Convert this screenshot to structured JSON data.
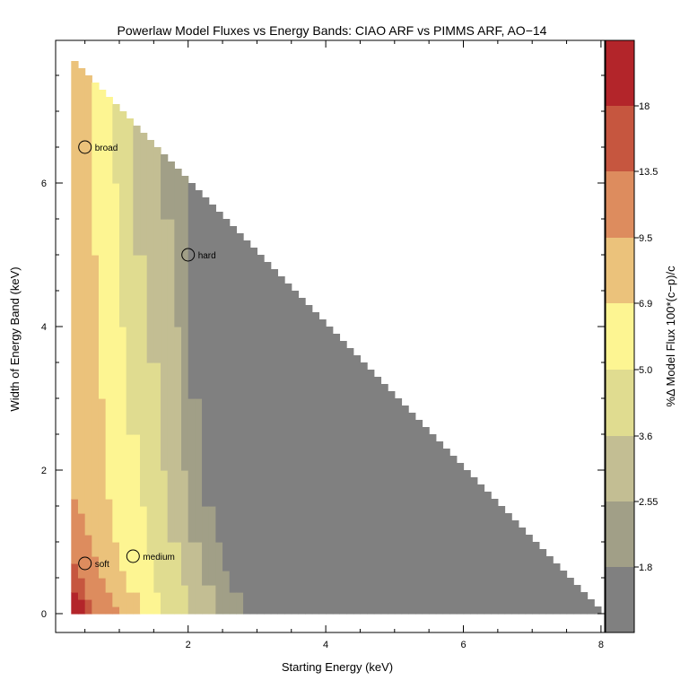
{
  "chart_data": {
    "type": "heatmap",
    "title": "Powerlaw Model Fluxes vs Energy Bands: CIAO ARF vs PIMMS ARF, AO−14",
    "xlabel": "Starting Energy (keV)",
    "ylabel": "Width of Energy Band (keV)",
    "colorbar_label": "%Δ Model Flux 100*(c−p)/c",
    "xlim": [
      -0.3,
      8.1
    ],
    "ylim": [
      -0.3,
      8.0
    ],
    "x_ticks": [
      2,
      4,
      6,
      8
    ],
    "y_ticks": [
      0,
      2,
      4,
      6
    ],
    "grid": false,
    "colorbar": {
      "tick_labels": [
        "1.8",
        "2.55",
        "3.6",
        "5.0",
        "6.9",
        "9.5",
        "13.5",
        "18"
      ],
      "colors": [
        "#808080",
        "#a19f87",
        "#c3be93",
        "#e0dc90",
        "#fdf592",
        "#ebc27b",
        "#dd8c5e",
        "#c6563f",
        "#b3252a"
      ]
    },
    "region": {
      "description": "Triangular domain: start energy 0.3-8.0 keV, band width 0.1 to (8 - start) keV",
      "x_min": 0.3,
      "x_max": 8.0,
      "y_min": 0.1
    },
    "contour_boundaries_y_by_x": {
      "x": [
        0.3,
        0.4,
        0.5,
        0.6,
        0.7,
        0.8,
        0.9,
        1.0,
        1.2,
        1.4,
        1.6,
        1.8,
        2.0,
        2.3,
        2.6,
        3.0
      ],
      "note": "color band index at each start energy as a function of width (estimated from image)"
    },
    "annotations": [
      {
        "label": "broad",
        "x": 0.5,
        "y": 6.5
      },
      {
        "label": "hard",
        "x": 2.0,
        "y": 5.0
      },
      {
        "label": "soft",
        "x": 0.5,
        "y": 0.7
      },
      {
        "label": "medium",
        "x": 1.2,
        "y": 0.8
      }
    ]
  }
}
